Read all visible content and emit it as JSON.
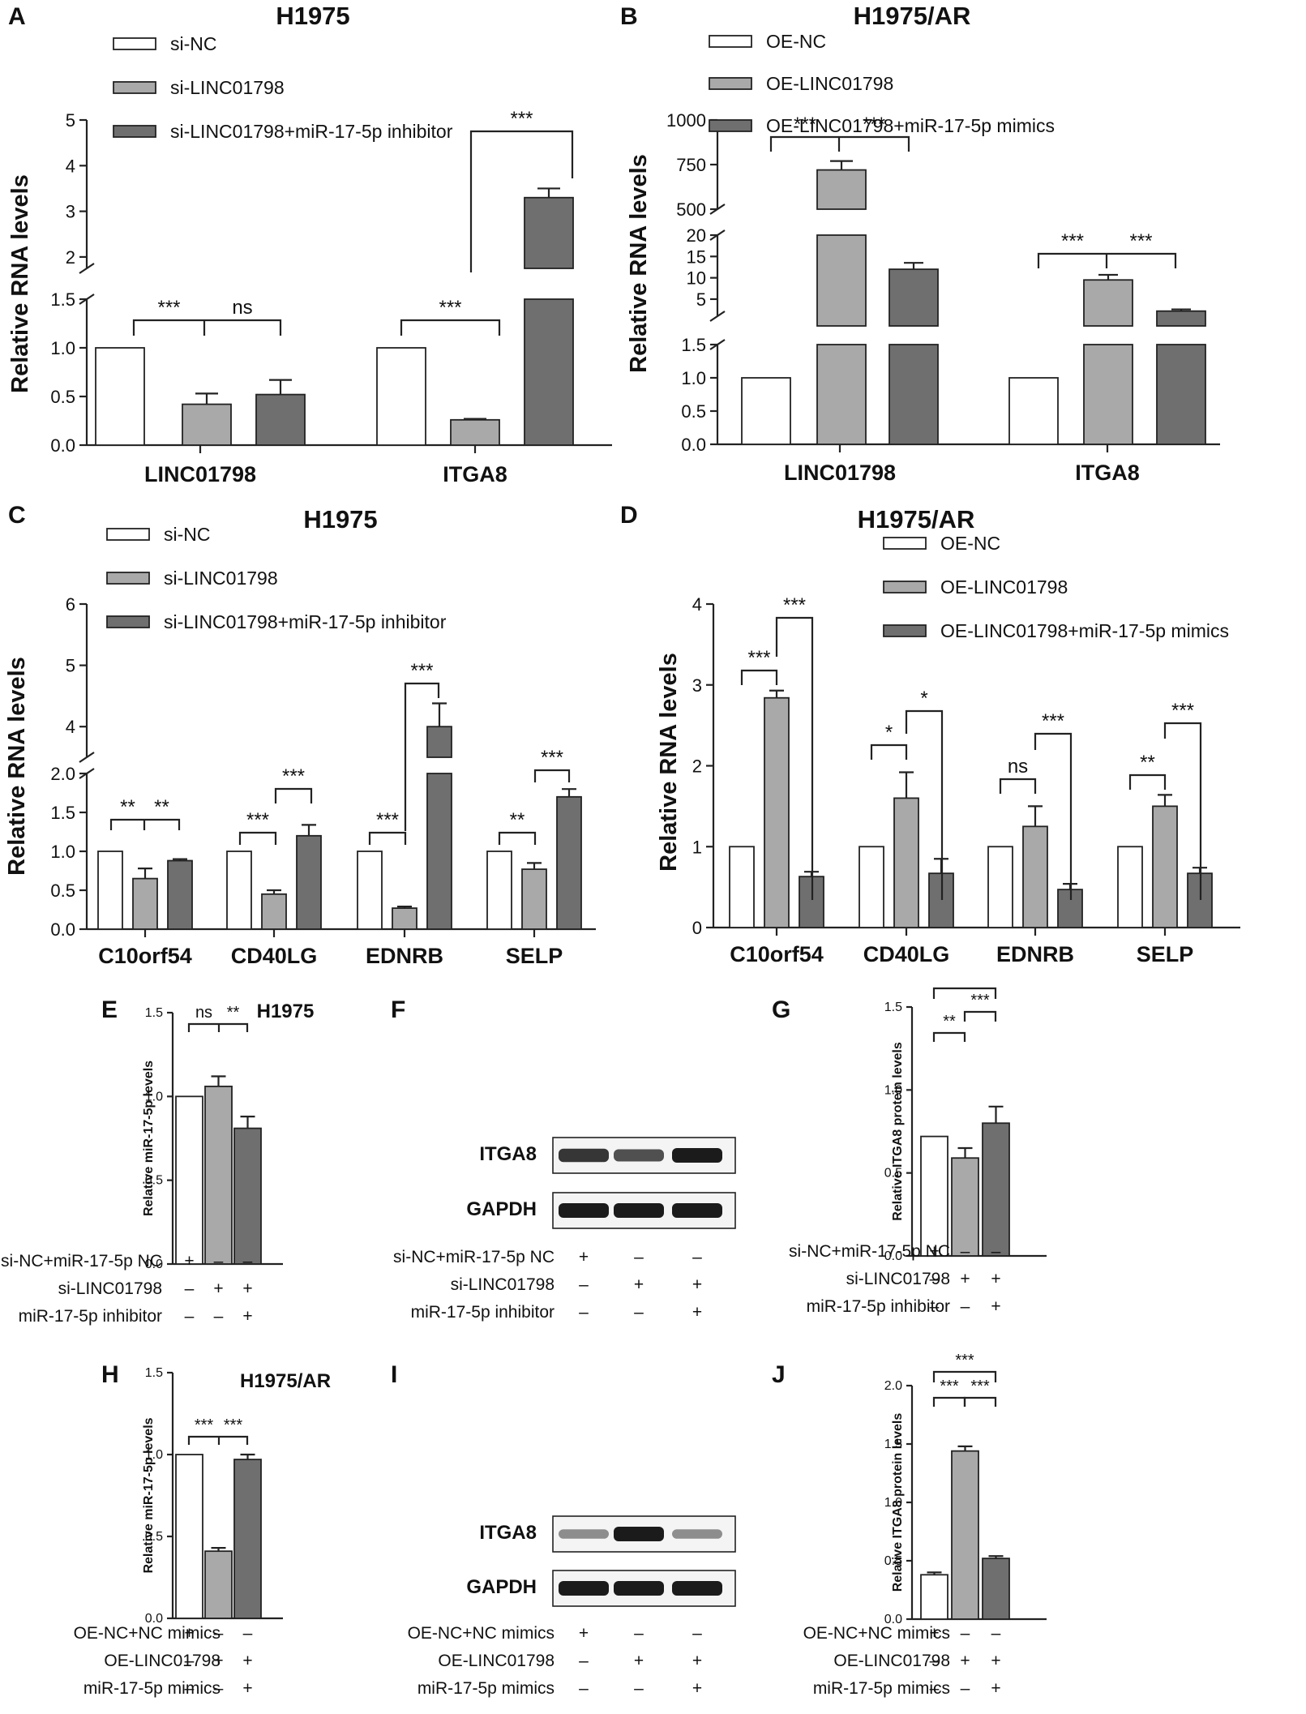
{
  "colors": {
    "white": "#ffffff",
    "light": "#a9a9a9",
    "dark": "#6f6f6f",
    "axis": "#222222"
  },
  "panels": {
    "A": {
      "label": "A",
      "title": "H1975"
    },
    "B": {
      "label": "B",
      "title": "H1975/AR"
    },
    "C": {
      "label": "C",
      "title": "H1975"
    },
    "D": {
      "label": "D",
      "title": "H1975/AR"
    },
    "E": {
      "label": "E",
      "title": "H1975"
    },
    "F": {
      "label": "F"
    },
    "G": {
      "label": "G"
    },
    "H": {
      "label": "H",
      "title": "H1975/AR"
    },
    "I": {
      "label": "I"
    },
    "J": {
      "label": "J"
    }
  },
  "chart_data": [
    {
      "id": "A",
      "type": "bar",
      "title": "H1975",
      "ylabel": "Relative RNA levels",
      "categories": [
        "LINC01798",
        "ITGA8"
      ],
      "series": [
        {
          "name": "si-NC",
          "values": [
            1.0,
            1.0
          ],
          "errors": [
            0,
            0
          ]
        },
        {
          "name": "si-LINC01798",
          "values": [
            0.42,
            0.26
          ],
          "errors": [
            0.11,
            0.01
          ]
        },
        {
          "name": "si-LINC01798+miR-17-5p inhibitor",
          "values": [
            0.52,
            3.3
          ],
          "errors": [
            0.15,
            0.2
          ]
        }
      ],
      "axis_break": {
        "lower": [
          0,
          1.5
        ],
        "upper": [
          1.5,
          5
        ]
      },
      "yticks_lower": [
        "0.0",
        "0.5",
        "1.0",
        "1.5"
      ],
      "yticks_upper": [
        "2",
        "3",
        "4",
        "5"
      ],
      "significance": [
        {
          "category": "LINC01798",
          "pairs": [
            [
              "***",
              0,
              1
            ],
            [
              "ns",
              1,
              2
            ]
          ]
        },
        {
          "category": "ITGA8",
          "pairs": [
            [
              "***",
              0,
              1
            ],
            [
              "***",
              1,
              2
            ]
          ]
        }
      ]
    },
    {
      "id": "B",
      "type": "bar",
      "title": "H1975/AR",
      "ylabel": "Relative RNA levels",
      "categories": [
        "LINC01798",
        "ITGA8"
      ],
      "series": [
        {
          "name": "OE-NC",
          "values": [
            1.0,
            1.0
          ],
          "errors": [
            0,
            0
          ]
        },
        {
          "name": "OE-LINC01798",
          "values": [
            720,
            9.5
          ],
          "errors": [
            50,
            1.2
          ]
        },
        {
          "name": "OE-LINC01798+miR-17-5p mimics",
          "values": [
            12,
            2.2
          ],
          "errors": [
            1.5,
            0.4
          ]
        }
      ],
      "axis_breaks": [
        [
          0,
          1.5
        ],
        [
          1,
          20
        ],
        [
          500,
          1000
        ]
      ],
      "yticks_lower": [
        "0.0",
        "0.5",
        "1.0",
        "1.5"
      ],
      "yticks_mid": [
        "5",
        "10",
        "15",
        "20"
      ],
      "yticks_upper": [
        "500",
        "750",
        "1000"
      ],
      "significance": [
        {
          "category": "LINC01798",
          "pairs": [
            [
              "***",
              0,
              1
            ],
            [
              "***",
              1,
              2
            ]
          ]
        },
        {
          "category": "ITGA8",
          "pairs": [
            [
              "***",
              0,
              1
            ],
            [
              "***",
              1,
              2
            ]
          ]
        }
      ]
    },
    {
      "id": "C",
      "type": "bar",
      "title": "H1975",
      "ylabel": "Relative RNA levels",
      "categories": [
        "C10orf54",
        "CD40LG",
        "EDNRB",
        "SELP"
      ],
      "series": [
        {
          "name": "si-NC",
          "values": [
            1.0,
            1.0,
            1.0,
            1.0
          ],
          "errors": [
            0,
            0,
            0,
            0
          ]
        },
        {
          "name": "si-LINC01798",
          "values": [
            0.65,
            0.45,
            0.27,
            0.77
          ],
          "errors": [
            0.13,
            0.05,
            0.02,
            0.08
          ]
        },
        {
          "name": "si-LINC01798+miR-17-5p inhibitor",
          "values": [
            0.88,
            1.2,
            4.0,
            1.7
          ],
          "errors": [
            0.02,
            0.14,
            0.38,
            0.1
          ]
        }
      ],
      "axis_break": {
        "lower": [
          0,
          2
        ],
        "upper": [
          3.5,
          6
        ]
      },
      "yticks_lower": [
        "0.0",
        "0.5",
        "1.0",
        "1.5",
        "2.0"
      ],
      "yticks_upper": [
        "4",
        "5",
        "6"
      ],
      "significance": [
        {
          "category": "C10orf54",
          "pairs": [
            [
              "**",
              0,
              1
            ],
            [
              "**",
              1,
              2
            ]
          ]
        },
        {
          "category": "CD40LG",
          "pairs": [
            [
              "***",
              0,
              1
            ],
            [
              "***",
              1,
              2
            ]
          ]
        },
        {
          "category": "EDNRB",
          "pairs": [
            [
              "***",
              0,
              1
            ],
            [
              "***",
              1,
              2
            ]
          ]
        },
        {
          "category": "SELP",
          "pairs": [
            [
              "**",
              0,
              1
            ],
            [
              "***",
              1,
              2
            ]
          ]
        }
      ]
    },
    {
      "id": "D",
      "type": "bar",
      "title": "H1975/AR",
      "ylabel": "Relative RNA levels",
      "categories": [
        "C10orf54",
        "CD40LG",
        "EDNRB",
        "SELP"
      ],
      "series": [
        {
          "name": "OE-NC",
          "values": [
            1.0,
            1.0,
            1.0,
            1.0
          ],
          "errors": [
            0,
            0,
            0,
            0
          ]
        },
        {
          "name": "OE-LINC01798",
          "values": [
            2.84,
            1.6,
            1.25,
            1.5
          ],
          "errors": [
            0.09,
            0.32,
            0.25,
            0.14
          ]
        },
        {
          "name": "OE-LINC01798+miR-17-5p mimics",
          "values": [
            0.63,
            0.67,
            0.47,
            0.67
          ],
          "errors": [
            0.06,
            0.18,
            0.07,
            0.07
          ]
        }
      ],
      "ylim": [
        0,
        4
      ],
      "yticks": [
        "0",
        "1",
        "2",
        "3",
        "4"
      ],
      "significance": [
        {
          "category": "C10orf54",
          "pairs": [
            [
              "***",
              0,
              1
            ],
            [
              "***",
              1,
              2
            ]
          ]
        },
        {
          "category": "CD40LG",
          "pairs": [
            [
              "*",
              0,
              1
            ],
            [
              "*",
              1,
              2
            ]
          ]
        },
        {
          "category": "EDNRB",
          "pairs": [
            [
              "ns",
              0,
              1
            ],
            [
              "***",
              1,
              2
            ]
          ]
        },
        {
          "category": "SELP",
          "pairs": [
            [
              "**",
              0,
              1
            ],
            [
              "***",
              1,
              2
            ]
          ]
        }
      ]
    },
    {
      "id": "E",
      "type": "bar",
      "title": "H1975",
      "ylabel": "Relative miR-17-5p levels",
      "values": [
        1.0,
        1.06,
        0.81
      ],
      "errors": [
        0,
        0.06,
        0.07
      ],
      "ylim": [
        0,
        1.5
      ],
      "yticks": [
        "0.0",
        "0.5",
        "1.0",
        "1.5"
      ],
      "significance": [
        [
          "ns",
          0,
          1
        ],
        [
          "**",
          1,
          2
        ]
      ],
      "conditions": [
        {
          "label": "si-NC+miR-17-5p NC",
          "marks": [
            "+",
            "–",
            "–"
          ]
        },
        {
          "label": "si-LINC01798",
          "marks": [
            "–",
            "+",
            "+"
          ]
        },
        {
          "label": "miR-17-5p inhibitor",
          "marks": [
            "–",
            "–",
            "+"
          ]
        }
      ]
    },
    {
      "id": "G",
      "type": "bar",
      "ylabel": "Relative ITGA8 protein levels",
      "values": [
        0.72,
        0.59,
        0.8
      ],
      "errors": [
        0,
        0.06,
        0.1
      ],
      "ylim": [
        0,
        1.5
      ],
      "yticks": [
        "0.0",
        "0.5",
        "1.0",
        "1.5"
      ],
      "significance": [
        [
          "**",
          0,
          1
        ],
        [
          "***",
          1,
          2
        ],
        [
          "***",
          0,
          2
        ]
      ],
      "conditions": [
        {
          "label": "si-NC+miR-17-5p NC",
          "marks": [
            "+",
            "–",
            "–"
          ]
        },
        {
          "label": "si-LINC01798",
          "marks": [
            "–",
            "+",
            "+"
          ]
        },
        {
          "label": "miR-17-5p inhibitor",
          "marks": [
            "–",
            "–",
            "+"
          ]
        }
      ]
    },
    {
      "id": "H",
      "type": "bar",
      "title": "H1975/AR",
      "ylabel": "Relative miR-17-5p levels",
      "values": [
        1.0,
        0.41,
        0.97
      ],
      "errors": [
        0,
        0.02,
        0.03
      ],
      "ylim": [
        0,
        1.5
      ],
      "yticks": [
        "0.0",
        "0.5",
        "1.0",
        "1.5"
      ],
      "significance": [
        [
          "***",
          0,
          1
        ],
        [
          "***",
          1,
          2
        ]
      ],
      "conditions": [
        {
          "label": "OE-NC+NC mimics",
          "marks": [
            "+",
            "–",
            "–"
          ]
        },
        {
          "label": "OE-LINC01798",
          "marks": [
            "–",
            "+",
            "+"
          ]
        },
        {
          "label": "miR-17-5p mimics",
          "marks": [
            "–",
            "–",
            "+"
          ]
        }
      ]
    },
    {
      "id": "J",
      "type": "bar",
      "ylabel": "Relative ITGA8 protein levels",
      "values": [
        0.38,
        1.44,
        0.52
      ],
      "errors": [
        0.02,
        0.04,
        0.02
      ],
      "ylim": [
        0,
        2.0
      ],
      "yticks": [
        "0.0",
        "0.5",
        "1.0",
        "1.5",
        "2.0"
      ],
      "significance": [
        [
          "***",
          0,
          1
        ],
        [
          "***",
          1,
          2
        ],
        [
          "***",
          0,
          2
        ]
      ],
      "conditions": [
        {
          "label": "OE-NC+NC mimics",
          "marks": [
            "+",
            "–",
            "–"
          ]
        },
        {
          "label": "OE-LINC01798",
          "marks": [
            "–",
            "+",
            "+"
          ]
        },
        {
          "label": "miR-17-5p mimics",
          "marks": [
            "–",
            "–",
            "+"
          ]
        }
      ]
    },
    {
      "id": "F",
      "type": "blot",
      "bands": [
        {
          "label": "ITGA8",
          "intensities": [
            0.85,
            0.7,
            1.0
          ]
        },
        {
          "label": "GAPDH",
          "intensities": [
            1.0,
            1.0,
            1.0
          ]
        }
      ],
      "conditions": [
        {
          "label": "si-NC+miR-17-5p NC",
          "marks": [
            "+",
            "–",
            "–"
          ]
        },
        {
          "label": "si-LINC01798",
          "marks": [
            "–",
            "+",
            "+"
          ]
        },
        {
          "label": "miR-17-5p inhibitor",
          "marks": [
            "–",
            "–",
            "+"
          ]
        }
      ]
    },
    {
      "id": "I",
      "type": "blot",
      "bands": [
        {
          "label": "ITGA8",
          "intensities": [
            0.35,
            1.0,
            0.35
          ]
        },
        {
          "label": "GAPDH",
          "intensities": [
            1.0,
            1.0,
            1.0
          ]
        }
      ],
      "conditions": [
        {
          "label": "OE-NC+NC mimics",
          "marks": [
            "+",
            "–",
            "–"
          ]
        },
        {
          "label": "OE-LINC01798",
          "marks": [
            "–",
            "+",
            "+"
          ]
        },
        {
          "label": "miR-17-5p mimics",
          "marks": [
            "–",
            "–",
            "+"
          ]
        }
      ]
    }
  ]
}
